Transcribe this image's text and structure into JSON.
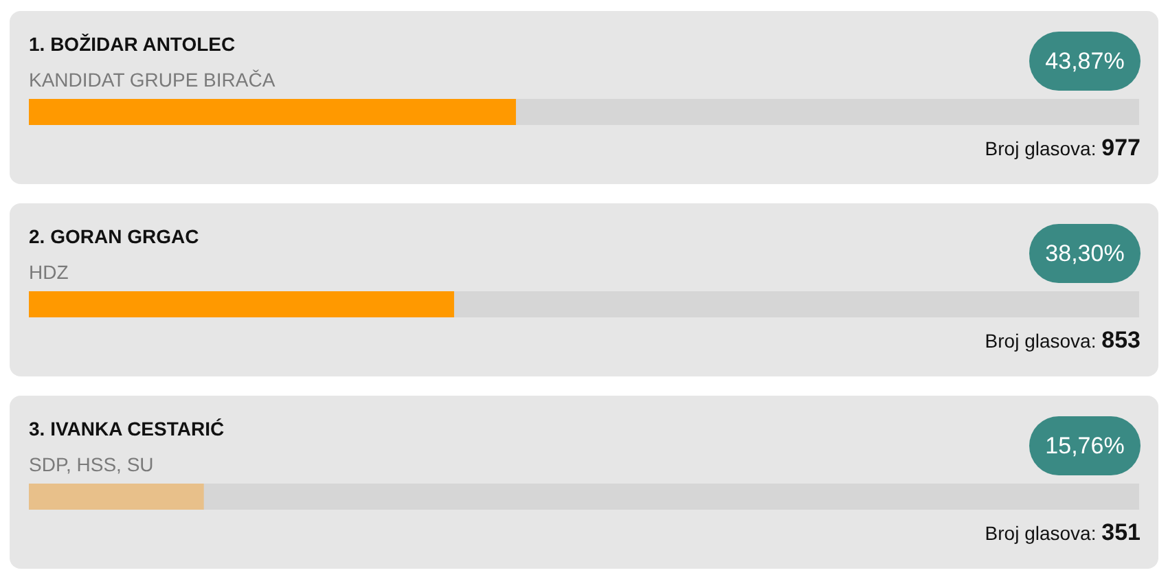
{
  "chart_data": {
    "type": "bar",
    "orientation": "horizontal",
    "categories": [
      "1. BOŽIDAR ANTOLEC",
      "2. GORAN GRGAC",
      "3. IVANKA CESTARIĆ"
    ],
    "values": [
      43.87,
      38.3,
      15.76
    ],
    "value_labels": [
      "43,87%",
      "38,30%",
      "15,76%"
    ],
    "colors": [
      "#ff9900",
      "#ff9900",
      "#e8c08a"
    ],
    "xlim": [
      0,
      100
    ],
    "tick_labels": false,
    "annotations": [
      "KANDIDAT GRUPE BIRAČA",
      "Broj glasova: 977",
      "HDZ",
      "Broj glasova: 853",
      "SDP, HSS, SU",
      "Broj glasova: 351"
    ]
  }
}
